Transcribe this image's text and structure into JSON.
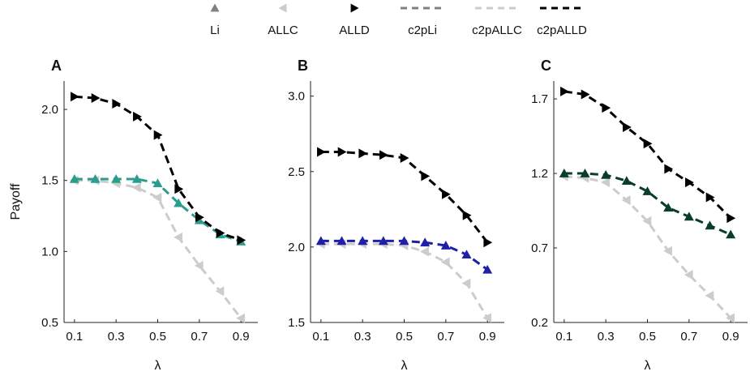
{
  "legend": [
    {
      "label": "Li",
      "marker": "triangle-up",
      "line": false,
      "color": "#808080"
    },
    {
      "label": "ALLC",
      "marker": "triangle-left",
      "line": false,
      "color": "#cccccc"
    },
    {
      "label": "ALLD",
      "marker": "triangle-right",
      "line": false,
      "color": "#000000"
    },
    {
      "label": "c2pLi",
      "marker": "none",
      "line": true,
      "color": "#808080"
    },
    {
      "label": "c2pALLC",
      "marker": "none",
      "line": true,
      "color": "#cccccc"
    },
    {
      "label": "c2pALLD",
      "marker": "none",
      "line": true,
      "color": "#000000"
    }
  ],
  "chart_data": [
    {
      "type": "line",
      "panel_label": "A",
      "xlabel": "λ",
      "ylabel": "Payoff",
      "x": [
        0.1,
        0.2,
        0.3,
        0.4,
        0.5,
        0.6,
        0.7,
        0.8,
        0.9
      ],
      "xticks": [
        "0.1",
        "0.3",
        "0.5",
        "0.7",
        "0.9"
      ],
      "xtick_values": [
        0.1,
        0.3,
        0.5,
        0.7,
        0.9
      ],
      "ylim": [
        0.5,
        2.2
      ],
      "yticks": [
        "0.5",
        "1.0",
        "1.5",
        "2.0"
      ],
      "ytick_values": [
        0.5,
        1.0,
        1.5,
        2.0
      ],
      "series": [
        {
          "label": "ALLC",
          "marker": "triangle-left",
          "color": "#cccccc",
          "values": [
            1.5,
            1.5,
            1.48,
            1.45,
            1.38,
            1.1,
            0.9,
            0.72,
            0.53
          ]
        },
        {
          "label": "Li",
          "marker": "triangle-up",
          "color": "#2a9d8f",
          "values": [
            1.51,
            1.51,
            1.51,
            1.51,
            1.48,
            1.34,
            1.22,
            1.12,
            1.07
          ]
        },
        {
          "label": "ALLD",
          "marker": "triangle-right",
          "color": "#000000",
          "values": [
            2.09,
            2.08,
            2.04,
            1.95,
            1.82,
            1.44,
            1.24,
            1.13,
            1.08
          ]
        }
      ]
    },
    {
      "type": "line",
      "panel_label": "B",
      "xlabel": "λ",
      "ylabel": "",
      "x": [
        0.1,
        0.2,
        0.3,
        0.4,
        0.5,
        0.6,
        0.7,
        0.8,
        0.9
      ],
      "xticks": [
        "0.1",
        "0.3",
        "0.5",
        "0.7",
        "0.9"
      ],
      "xtick_values": [
        0.1,
        0.3,
        0.5,
        0.7,
        0.9
      ],
      "ylim": [
        1.5,
        3.1
      ],
      "yticks": [
        "1.5",
        "2.0",
        "2.5",
        "3.0"
      ],
      "ytick_values": [
        1.5,
        2.0,
        2.5,
        3.0
      ],
      "series": [
        {
          "label": "ALLC",
          "marker": "triangle-left",
          "color": "#cccccc",
          "values": [
            2.02,
            2.02,
            2.02,
            2.02,
            2.01,
            1.97,
            1.9,
            1.76,
            1.53
          ]
        },
        {
          "label": "Li",
          "marker": "triangle-up",
          "color": "#1f1fa8",
          "values": [
            2.04,
            2.04,
            2.04,
            2.04,
            2.04,
            2.03,
            2.01,
            1.95,
            1.85
          ]
        },
        {
          "label": "ALLD",
          "marker": "triangle-right",
          "color": "#000000",
          "values": [
            2.63,
            2.63,
            2.62,
            2.61,
            2.59,
            2.47,
            2.35,
            2.21,
            2.03
          ]
        }
      ]
    },
    {
      "type": "line",
      "panel_label": "C",
      "xlabel": "λ",
      "ylabel": "",
      "x": [
        0.1,
        0.2,
        0.3,
        0.4,
        0.5,
        0.6,
        0.7,
        0.8,
        0.9
      ],
      "xticks": [
        "0.1",
        "0.3",
        "0.5",
        "0.7",
        "0.9"
      ],
      "xtick_values": [
        0.1,
        0.3,
        0.5,
        0.7,
        0.9
      ],
      "ylim": [
        0.2,
        1.82
      ],
      "yticks": [
        "0.2",
        "0.7",
        "1.2",
        "1.7"
      ],
      "ytick_values": [
        0.2,
        0.7,
        1.2,
        1.7
      ],
      "series": [
        {
          "label": "ALLC",
          "marker": "triangle-left",
          "color": "#cccccc",
          "values": [
            1.18,
            1.17,
            1.14,
            1.02,
            0.88,
            0.68,
            0.52,
            0.38,
            0.23
          ]
        },
        {
          "label": "Li",
          "marker": "triangle-up",
          "color": "#0b3d2e",
          "values": [
            1.2,
            1.2,
            1.19,
            1.15,
            1.08,
            0.97,
            0.91,
            0.85,
            0.79
          ]
        },
        {
          "label": "ALLD",
          "marker": "triangle-right",
          "color": "#000000",
          "values": [
            1.75,
            1.73,
            1.64,
            1.51,
            1.4,
            1.23,
            1.14,
            1.04,
            0.9
          ]
        }
      ]
    }
  ]
}
